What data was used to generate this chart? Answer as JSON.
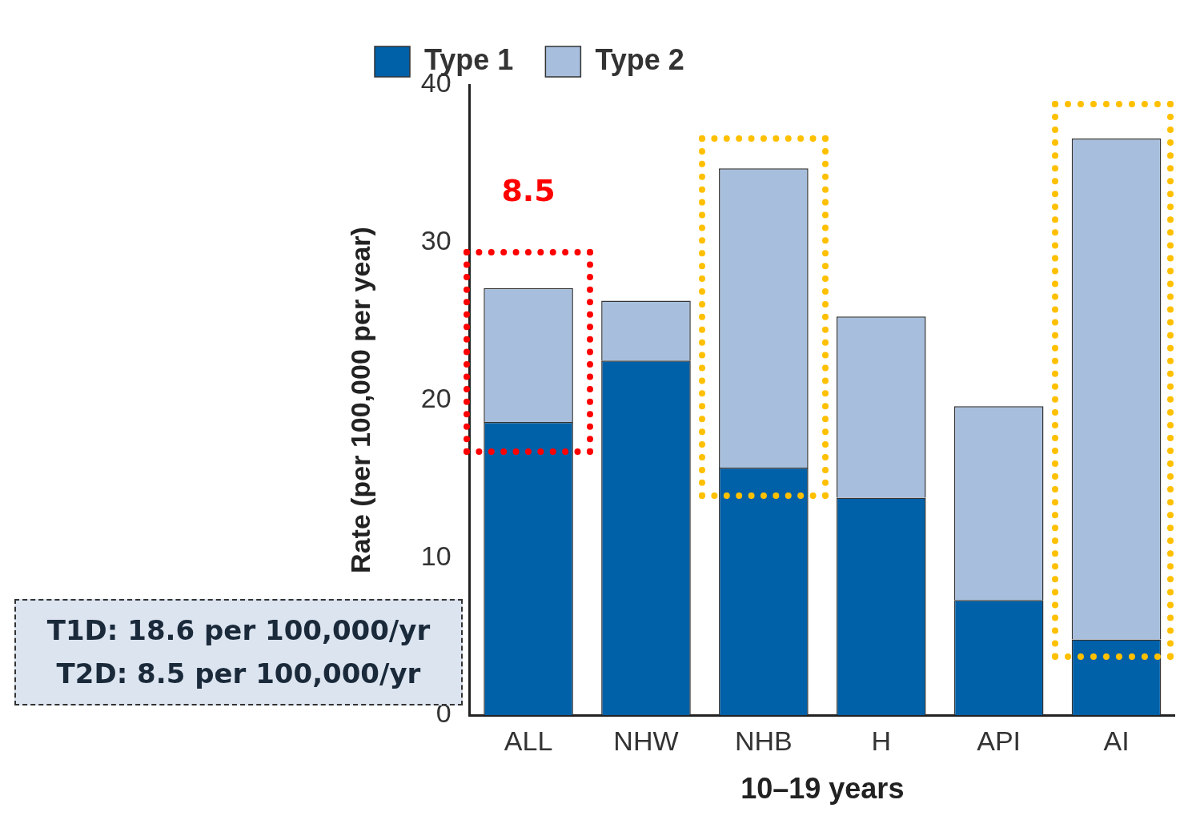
{
  "chart_data": {
    "type": "bar",
    "stacked": true,
    "xlabel": "10–19 years",
    "ylabel": "Rate (per 100,000 per year)",
    "categories": [
      "ALL",
      "NHW",
      "NHB",
      "H",
      "API",
      "AI"
    ],
    "series": [
      {
        "name": "Type 1",
        "color": "#0060a8",
        "values": [
          18.6,
          22.5,
          15.7,
          13.8,
          7.3,
          4.8
        ]
      },
      {
        "name": "Type 2",
        "color": "#a7bfdd",
        "values": [
          8.5,
          3.8,
          19.0,
          11.5,
          12.3,
          31.8
        ]
      }
    ],
    "ylim": [
      0,
      40
    ],
    "yticks": [
      0,
      10,
      20,
      30,
      40
    ],
    "grid": false,
    "legend": "top left",
    "annotations": [
      {
        "text": "8.5",
        "x": "ALL",
        "y": 27.1
      },
      "T1D: 18.6 per 100,000/yr",
      "T2D: 8.5 per 100,000/yr"
    ]
  }
}
